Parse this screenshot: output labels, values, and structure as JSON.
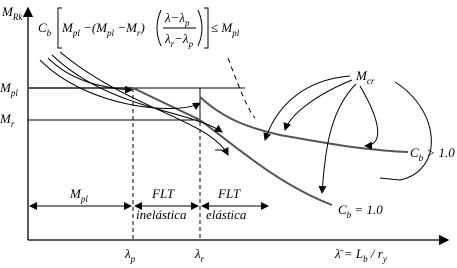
{
  "labels": {
    "y_axis": [
      {
        "t": "M",
        "s": "Rk"
      }
    ],
    "mpl": [
      {
        "t": "M",
        "s": "pl"
      }
    ],
    "mr": [
      {
        "t": "M",
        "s": "r"
      }
    ],
    "mcr": [
      {
        "t": "M",
        "s": "cr"
      }
    ],
    "cb_gt": [
      {
        "t": "C",
        "s": "b"
      },
      {
        "t": " > 1.0"
      }
    ],
    "cb_eq": [
      {
        "t": "C",
        "s": "b"
      },
      {
        "t": " = 1.0"
      }
    ],
    "lambda_p": [
      {
        "t": "λ",
        "s": "p"
      }
    ],
    "lambda_r": [
      {
        "t": "λ",
        "s": "r"
      }
    ],
    "x_axis": [
      {
        "t": "λ̄  = L",
        "s": "b"
      },
      {
        "t": " / r",
        "s": "y"
      }
    ]
  },
  "regions": {
    "plastic": [
      {
        "t": "M",
        "s": "pl"
      }
    ],
    "inelastic_1": [
      {
        "t": "FLT"
      }
    ],
    "inelastic_2": [
      {
        "t": "inelástica"
      }
    ],
    "elastic_1": [
      {
        "t": "FLT"
      }
    ],
    "elastic_2": [
      {
        "t": "elástica"
      }
    ]
  },
  "formula": {
    "left": [
      {
        "t": "C",
        "s": "b"
      }
    ],
    "inner": [
      {
        "t": "M",
        "s": "pl"
      },
      {
        "t": " −(M",
        "s": "pl"
      },
      {
        "t": " −M",
        "s": "r"
      },
      {
        "t": ")"
      }
    ],
    "numerator": [
      {
        "t": "λ−λ",
        "s": "p"
      }
    ],
    "denominator": [
      {
        "t": "λ",
        "s": "r"
      },
      {
        "t": "−λ",
        "s": "p"
      }
    ],
    "right": [
      {
        "t": "≤ M",
        "s": "pl"
      }
    ]
  }
}
